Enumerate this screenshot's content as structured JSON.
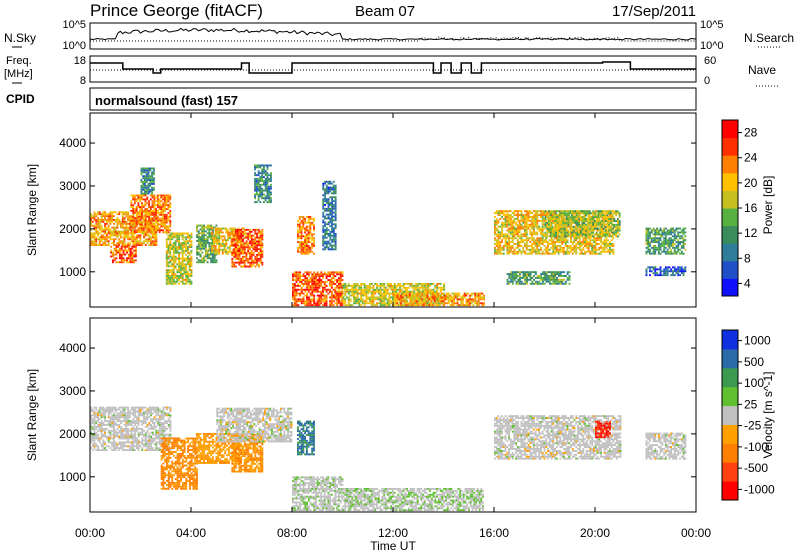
{
  "header": {
    "station": "Prince George (fitACF)",
    "beam": "Beam 07",
    "date": "17/Sep/2011"
  },
  "noise_panel": {
    "left_label": "N.Sky",
    "right_label": "N.Search",
    "left_ticks": [
      "10^5",
      "10^0"
    ],
    "right_ticks": [
      "10^5",
      "10^0"
    ]
  },
  "freq_panel": {
    "left_label_line1": "Freq.",
    "left_label_line2": "[MHz]",
    "right_label": "Nave",
    "left_ticks": [
      "18",
      "8"
    ],
    "right_ticks": [
      "60",
      "0"
    ]
  },
  "cpid": {
    "label": "CPID",
    "text": "normalsound (fast) 157"
  },
  "x_axis": {
    "label": "Time UT",
    "ticks": [
      "00:00",
      "04:00",
      "08:00",
      "12:00",
      "16:00",
      "20:00",
      "00:00"
    ]
  },
  "chart_data": [
    {
      "type": "heatmap",
      "title": "Power",
      "ylabel": "Slant Range [km]",
      "xlabel": "",
      "y_ticks": [
        "1000",
        "2000",
        "3000",
        "4000"
      ],
      "ylim": [
        180,
        4700
      ],
      "xlim_hours": [
        0,
        24
      ],
      "colorbar": {
        "label": "Power [dB]",
        "ticks": [
          "4",
          "8",
          "12",
          "16",
          "20",
          "24",
          "28"
        ],
        "range": [
          0,
          32
        ],
        "colors": [
          "#1010ff",
          "#2050c8",
          "#2e7d9a",
          "#3a8c5a",
          "#58b040",
          "#c8c020",
          "#ffc000",
          "#ff8000",
          "#ff3000",
          "#ff0000"
        ]
      },
      "echo_regions": [
        {
          "t0": 0.0,
          "t1": 2.6,
          "r0": 1600,
          "r1": 2400,
          "power": 22
        },
        {
          "t0": 0.8,
          "t1": 1.8,
          "r0": 1200,
          "r1": 1600,
          "power": 26
        },
        {
          "t0": 1.6,
          "t1": 3.2,
          "r0": 1900,
          "r1": 2800,
          "power": 24
        },
        {
          "t0": 2.0,
          "t1": 2.5,
          "r0": 2800,
          "r1": 3400,
          "power": 10
        },
        {
          "t0": 3.0,
          "t1": 4.0,
          "r0": 700,
          "r1": 1900,
          "power": 18
        },
        {
          "t0": 4.2,
          "t1": 5.0,
          "r0": 1200,
          "r1": 2100,
          "power": 14
        },
        {
          "t0": 4.8,
          "t1": 6.1,
          "r0": 1400,
          "r1": 2000,
          "power": 20
        },
        {
          "t0": 5.6,
          "t1": 6.8,
          "r0": 1100,
          "r1": 2000,
          "power": 26
        },
        {
          "t0": 6.5,
          "t1": 7.2,
          "r0": 2600,
          "r1": 3500,
          "power": 10
        },
        {
          "t0": 8.0,
          "t1": 10.0,
          "r0": 200,
          "r1": 1000,
          "power": 26
        },
        {
          "t0": 8.2,
          "t1": 8.9,
          "r0": 1400,
          "r1": 2300,
          "power": 24
        },
        {
          "t0": 9.2,
          "t1": 9.7,
          "r0": 1500,
          "r1": 3100,
          "power": 8
        },
        {
          "t0": 10.0,
          "t1": 14.0,
          "r0": 200,
          "r1": 700,
          "power": 18
        },
        {
          "t0": 12.0,
          "t1": 15.6,
          "r0": 200,
          "r1": 500,
          "power": 22
        },
        {
          "t0": 16.0,
          "t1": 20.7,
          "r0": 1400,
          "r1": 2400,
          "power": 20
        },
        {
          "t0": 16.5,
          "t1": 19.0,
          "r0": 700,
          "r1": 1000,
          "power": 12
        },
        {
          "t0": 18.0,
          "t1": 21.0,
          "r0": 1800,
          "r1": 2400,
          "power": 16
        },
        {
          "t0": 22.0,
          "t1": 23.6,
          "r0": 1400,
          "r1": 2000,
          "power": 12
        },
        {
          "t0": 22.0,
          "t1": 23.6,
          "r0": 900,
          "r1": 1100,
          "power": 6
        }
      ]
    },
    {
      "type": "heatmap",
      "title": "Velocity",
      "ylabel": "Slant Range [km]",
      "xlabel": "Time UT",
      "y_ticks": [
        "1000",
        "2000",
        "3000",
        "4000"
      ],
      "ylim": [
        180,
        4700
      ],
      "xlim_hours": [
        0,
        24
      ],
      "colorbar": {
        "label": "Velocity [m s^-1]",
        "ticks": [
          "1000",
          "500",
          "100",
          "25",
          "-25",
          "-100",
          "-500",
          "-1000"
        ],
        "range": [
          -1200,
          1200
        ],
        "colors": [
          "#ff0000",
          "#ff4010",
          "#ff8000",
          "#ffa000",
          "#c0c0c0",
          "#60c030",
          "#3a9a50",
          "#2a6aa8",
          "#1030e0"
        ]
      },
      "echo_regions": [
        {
          "t0": 0.0,
          "t1": 3.2,
          "r0": 1600,
          "r1": 2600,
          "velocity": 0
        },
        {
          "t0": 2.8,
          "t1": 4.2,
          "r0": 700,
          "r1": 1900,
          "velocity": -450
        },
        {
          "t0": 4.2,
          "t1": 6.0,
          "r0": 1300,
          "r1": 2000,
          "velocity": -300
        },
        {
          "t0": 5.6,
          "t1": 6.8,
          "r0": 1100,
          "r1": 2000,
          "velocity": -400
        },
        {
          "t0": 5.0,
          "t1": 8.0,
          "r0": 1800,
          "r1": 2600,
          "velocity": 0
        },
        {
          "t0": 8.2,
          "t1": 8.9,
          "r0": 1500,
          "r1": 2300,
          "velocity": 700
        },
        {
          "t0": 8.0,
          "t1": 10.0,
          "r0": 200,
          "r1": 1000,
          "velocity": 50
        },
        {
          "t0": 10.0,
          "t1": 15.6,
          "r0": 200,
          "r1": 700,
          "velocity": 80
        },
        {
          "t0": 16.0,
          "t1": 21.0,
          "r0": 1400,
          "r1": 2400,
          "velocity": 0
        },
        {
          "t0": 20.0,
          "t1": 20.6,
          "r0": 1900,
          "r1": 2300,
          "velocity": -900
        },
        {
          "t0": 22.0,
          "t1": 23.6,
          "r0": 1400,
          "r1": 2000,
          "velocity": 0
        }
      ]
    }
  ]
}
